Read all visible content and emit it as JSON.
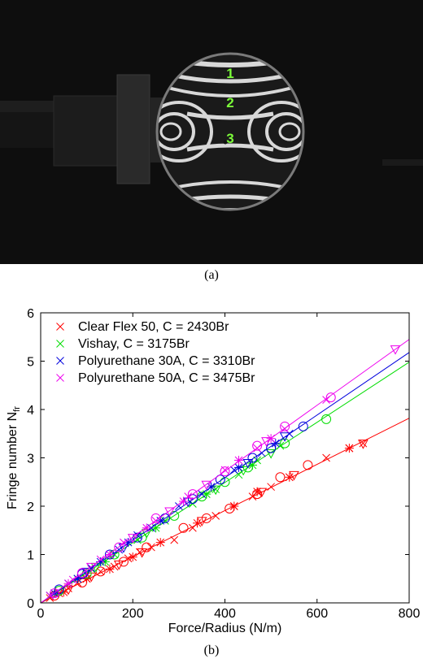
{
  "figure": {
    "caption_a": "(a)",
    "caption_b": "(b)",
    "photo": {
      "fringe_labels": [
        "1",
        "2",
        "3"
      ],
      "label_color": "#7CFC3A"
    }
  },
  "chart_data": {
    "type": "scatter",
    "xlabel": "Force/Radius (N/m)",
    "ylabel": "Fringe number N",
    "ylabel_subscript": "fr",
    "xlim": [
      0,
      800
    ],
    "ylim": [
      0,
      6
    ],
    "xticks": [
      0,
      200,
      400,
      600,
      800
    ],
    "yticks": [
      0,
      1,
      2,
      3,
      4,
      5,
      6
    ],
    "grid": false,
    "legend_position": "top-left",
    "series": [
      {
        "name": "Clear Flex 50, C = 2430Br",
        "color": "#ff0000",
        "fit": [
          [
            0,
            0.0
          ],
          [
            800,
            3.82
          ]
        ],
        "points": [
          [
            20,
            0.1,
            "x"
          ],
          [
            40,
            0.2,
            "x"
          ],
          [
            60,
            0.3,
            "x"
          ],
          [
            80,
            0.42,
            "x"
          ],
          [
            100,
            0.5,
            "x"
          ],
          [
            130,
            0.65,
            "x"
          ],
          [
            160,
            0.75,
            "x"
          ],
          [
            190,
            0.92,
            "x"
          ],
          [
            215,
            1.05,
            "x"
          ],
          [
            240,
            1.15,
            "x"
          ],
          [
            290,
            1.3,
            "x"
          ],
          [
            330,
            1.55,
            "x"
          ],
          [
            380,
            1.8,
            "x"
          ],
          [
            420,
            2.0,
            "x"
          ],
          [
            460,
            2.2,
            "x"
          ],
          [
            500,
            2.4,
            "x"
          ],
          [
            540,
            2.6,
            "x"
          ],
          [
            620,
            3.0,
            "x"
          ],
          [
            670,
            3.2,
            "x"
          ],
          [
            700,
            3.3,
            "x"
          ],
          [
            30,
            0.15,
            "o"
          ],
          [
            90,
            0.42,
            "o"
          ],
          [
            130,
            0.65,
            "o"
          ],
          [
            180,
            0.85,
            "o"
          ],
          [
            230,
            1.15,
            "o"
          ],
          [
            310,
            1.55,
            "o"
          ],
          [
            360,
            1.75,
            "o"
          ],
          [
            410,
            1.95,
            "o"
          ],
          [
            470,
            2.25,
            "o"
          ],
          [
            520,
            2.6,
            "o"
          ],
          [
            580,
            2.85,
            "o"
          ],
          [
            50,
            0.22,
            "*"
          ],
          [
            100,
            0.5,
            "*"
          ],
          [
            150,
            0.7,
            "*"
          ],
          [
            200,
            0.95,
            "*"
          ],
          [
            260,
            1.25,
            "*"
          ],
          [
            340,
            1.65,
            "*"
          ],
          [
            420,
            2.0,
            "*"
          ],
          [
            470,
            2.3,
            "*"
          ],
          [
            540,
            2.6,
            "*"
          ],
          [
            670,
            3.2,
            "*"
          ],
          [
            60,
            0.28,
            "v"
          ],
          [
            110,
            0.55,
            "v"
          ],
          [
            170,
            0.8,
            "v"
          ],
          [
            220,
            1.05,
            "v"
          ],
          [
            350,
            1.7,
            "v"
          ],
          [
            480,
            2.3,
            "v"
          ],
          [
            550,
            2.65,
            "v"
          ],
          [
            700,
            3.3,
            "v"
          ]
        ]
      },
      {
        "name": "Vishay, C = 3175Br",
        "color": "#00dd00",
        "fit": [
          [
            0,
            0.0
          ],
          [
            800,
            4.98
          ]
        ],
        "points": [
          [
            20,
            0.15,
            "x"
          ],
          [
            60,
            0.4,
            "x"
          ],
          [
            110,
            0.7,
            "x"
          ],
          [
            160,
            1.0,
            "x"
          ],
          [
            210,
            1.3,
            "x"
          ],
          [
            270,
            1.7,
            "x"
          ],
          [
            330,
            2.05,
            "x"
          ],
          [
            380,
            2.35,
            "x"
          ],
          [
            430,
            2.65,
            "x"
          ],
          [
            470,
            2.95,
            "x"
          ],
          [
            520,
            3.25,
            "x"
          ],
          [
            40,
            0.25,
            "o"
          ],
          [
            100,
            0.6,
            "o"
          ],
          [
            160,
            1.0,
            "o"
          ],
          [
            220,
            1.35,
            "o"
          ],
          [
            290,
            1.8,
            "o"
          ],
          [
            350,
            2.2,
            "o"
          ],
          [
            400,
            2.5,
            "o"
          ],
          [
            450,
            2.8,
            "o"
          ],
          [
            530,
            3.3,
            "o"
          ],
          [
            620,
            3.8,
            "o"
          ],
          [
            80,
            0.5,
            "*"
          ],
          [
            140,
            0.85,
            "*"
          ],
          [
            250,
            1.55,
            "*"
          ],
          [
            360,
            2.25,
            "*"
          ],
          [
            460,
            2.85,
            "*"
          ],
          [
            120,
            0.75,
            "v"
          ],
          [
            230,
            1.45,
            "v"
          ],
          [
            380,
            2.35,
            "v"
          ],
          [
            440,
            2.75,
            "v"
          ],
          [
            500,
            3.1,
            "v"
          ]
        ]
      },
      {
        "name": "Polyurethane 30A, C = 3310Br",
        "color": "#0000dd",
        "fit": [
          [
            0,
            0.0
          ],
          [
            800,
            5.18
          ]
        ],
        "points": [
          [
            20,
            0.15,
            "x"
          ],
          [
            60,
            0.4,
            "x"
          ],
          [
            110,
            0.72,
            "x"
          ],
          [
            170,
            1.1,
            "x"
          ],
          [
            210,
            1.4,
            "x"
          ],
          [
            240,
            1.55,
            "x"
          ],
          [
            300,
            2.0,
            "x"
          ],
          [
            350,
            2.25,
            "x"
          ],
          [
            420,
            2.75,
            "x"
          ],
          [
            480,
            3.1,
            "x"
          ],
          [
            540,
            3.5,
            "x"
          ],
          [
            40,
            0.28,
            "o"
          ],
          [
            90,
            0.6,
            "o"
          ],
          [
            150,
            1.0,
            "o"
          ],
          [
            210,
            1.35,
            "o"
          ],
          [
            270,
            1.75,
            "o"
          ],
          [
            330,
            2.15,
            "o"
          ],
          [
            390,
            2.55,
            "o"
          ],
          [
            460,
            3.0,
            "o"
          ],
          [
            500,
            3.2,
            "o"
          ],
          [
            570,
            3.65,
            "o"
          ],
          [
            30,
            0.2,
            "*"
          ],
          [
            80,
            0.5,
            "*"
          ],
          [
            130,
            0.85,
            "*"
          ],
          [
            190,
            1.25,
            "*"
          ],
          [
            260,
            1.7,
            "*"
          ],
          [
            370,
            2.4,
            "*"
          ],
          [
            430,
            2.8,
            "*"
          ],
          [
            510,
            3.3,
            "*"
          ],
          [
            100,
            0.65,
            "v"
          ],
          [
            180,
            1.15,
            "v"
          ],
          [
            320,
            2.1,
            "v"
          ],
          [
            450,
            2.9,
            "v"
          ],
          [
            530,
            3.45,
            "v"
          ]
        ]
      },
      {
        "name": "Polyurethane 50A, C = 3475Br",
        "color": "#ee00ee",
        "fit": [
          [
            0,
            0.0
          ],
          [
            800,
            5.45
          ]
        ],
        "points": [
          [
            20,
            0.15,
            "x"
          ],
          [
            70,
            0.48,
            "x"
          ],
          [
            130,
            0.9,
            "x"
          ],
          [
            180,
            1.25,
            "x"
          ],
          [
            250,
            1.7,
            "x"
          ],
          [
            320,
            2.2,
            "x"
          ],
          [
            400,
            2.75,
            "x"
          ],
          [
            470,
            3.2,
            "x"
          ],
          [
            530,
            3.6,
            "x"
          ],
          [
            620,
            4.2,
            "x"
          ],
          [
            30,
            0.2,
            "o"
          ],
          [
            90,
            0.62,
            "o"
          ],
          [
            170,
            1.15,
            "o"
          ],
          [
            250,
            1.75,
            "o"
          ],
          [
            330,
            2.25,
            "o"
          ],
          [
            400,
            2.72,
            "o"
          ],
          [
            470,
            3.25,
            "o"
          ],
          [
            530,
            3.65,
            "o"
          ],
          [
            630,
            4.25,
            "o"
          ],
          [
            60,
            0.4,
            "*"
          ],
          [
            150,
            1.0,
            "*"
          ],
          [
            230,
            1.55,
            "*"
          ],
          [
            310,
            2.1,
            "*"
          ],
          [
            430,
            2.95,
            "*"
          ],
          [
            500,
            3.4,
            "*"
          ],
          [
            110,
            0.75,
            "v"
          ],
          [
            200,
            1.35,
            "v"
          ],
          [
            280,
            1.9,
            "v"
          ],
          [
            360,
            2.45,
            "v"
          ],
          [
            490,
            3.35,
            "v"
          ],
          [
            770,
            5.25,
            "v"
          ]
        ]
      }
    ]
  }
}
